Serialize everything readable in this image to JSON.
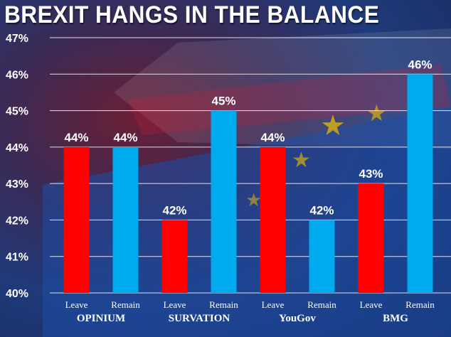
{
  "title": "BREXIT HANGS IN THE BALANCE",
  "colors": {
    "leave": "#ff0000",
    "remain": "#00aaee"
  },
  "chart_data": {
    "type": "bar",
    "title": "BREXIT HANGS IN THE BALANCE",
    "ylim": [
      40,
      47
    ],
    "yticks": [
      "40%",
      "41%",
      "42%",
      "43%",
      "44%",
      "45%",
      "46%",
      "47%"
    ],
    "grid": true,
    "groups": [
      "OPINIUM",
      "SURVATION",
      "YouGov",
      "BMG"
    ],
    "bars": [
      {
        "group": "OPINIUM",
        "category": "Leave",
        "value": 44,
        "label": "44%"
      },
      {
        "group": "OPINIUM",
        "category": "Remain",
        "value": 44,
        "label": "44%"
      },
      {
        "group": "SURVATION",
        "category": "Leave",
        "value": 42,
        "label": "42%"
      },
      {
        "group": "SURVATION",
        "category": "Remain",
        "value": 45,
        "label": "45%"
      },
      {
        "group": "YouGov",
        "category": "Leave",
        "value": 44,
        "label": "44%"
      },
      {
        "group": "YouGov",
        "category": "Remain",
        "value": 42,
        "label": "42%"
      },
      {
        "group": "BMG",
        "category": "Leave",
        "value": 43,
        "label": "43%"
      },
      {
        "group": "BMG",
        "category": "Remain",
        "value": 46,
        "label": "46%"
      }
    ]
  }
}
